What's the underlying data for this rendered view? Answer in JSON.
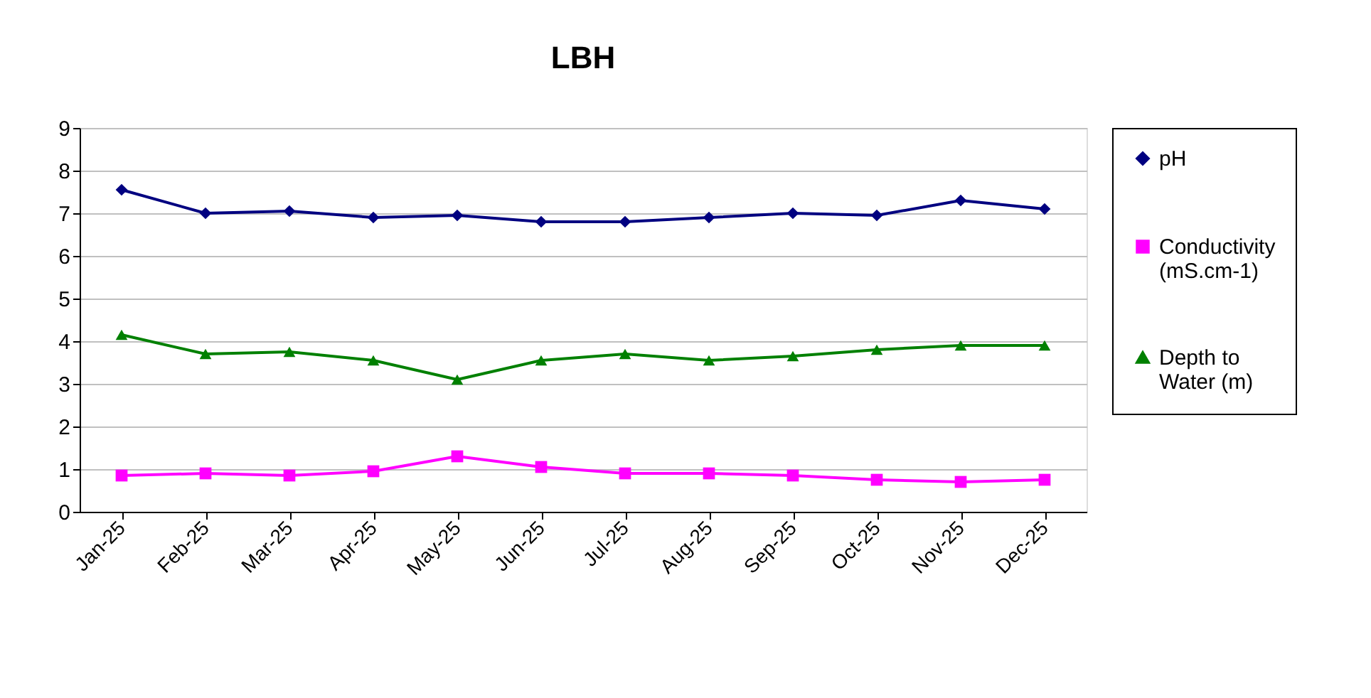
{
  "chart_data": {
    "type": "line",
    "title": "LBH",
    "categories": [
      "Jan-25",
      "Feb-25",
      "Mar-25",
      "Apr-25",
      "May-25",
      "Jun-25",
      "Jul-25",
      "Aug-25",
      "Sep-25",
      "Oct-25",
      "Nov-25",
      "Dec-25"
    ],
    "series": [
      {
        "name": "pH",
        "color": "#000080",
        "marker": "diamond",
        "values": [
          7.55,
          7.0,
          7.05,
          6.9,
          6.95,
          6.8,
          6.8,
          6.9,
          7.0,
          6.95,
          7.3,
          7.1
        ]
      },
      {
        "name": "Conductivity (mS.cm-1)",
        "color": "#ff00ff",
        "marker": "square",
        "values": [
          0.85,
          0.9,
          0.85,
          0.95,
          1.3,
          1.05,
          0.9,
          0.9,
          0.85,
          0.75,
          0.7,
          0.75
        ]
      },
      {
        "name": "Depth to Water (m)",
        "color": "#008000",
        "marker": "triangle",
        "values": [
          4.15,
          3.7,
          3.75,
          3.55,
          3.1,
          3.55,
          3.7,
          3.55,
          3.65,
          3.8,
          3.9,
          3.9
        ]
      }
    ],
    "ylim": [
      0,
      9
    ],
    "yticks": [
      0,
      1,
      2,
      3,
      4,
      5,
      6,
      7,
      8,
      9
    ],
    "grid": "y",
    "legend": "right",
    "line_style": "solid"
  }
}
